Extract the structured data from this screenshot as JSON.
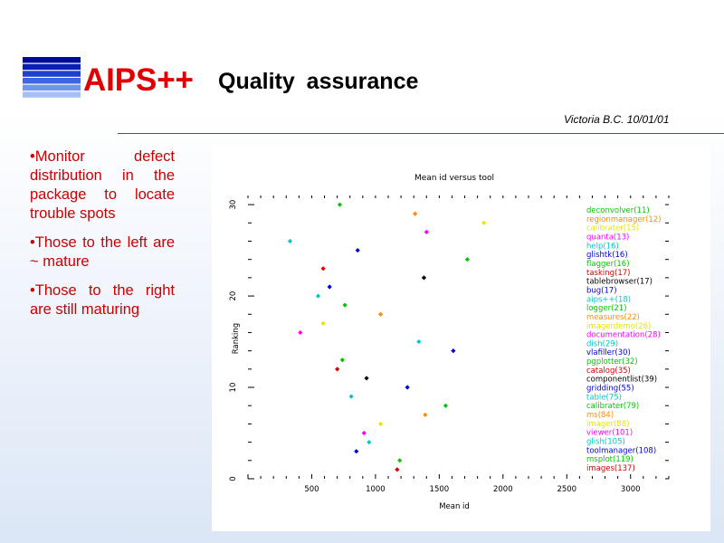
{
  "slide": {
    "title": "Quality  assurance",
    "byline": "Victoria  B.C.  10/01/01",
    "bullets": [
      "•Monitor defect distribution in the package to locate trouble spots",
      "•Those to the left are ~ mature",
      "•Those to the right are still maturing"
    ]
  },
  "logo": {
    "text": "AIPS++",
    "stripe_colors": [
      "#000a9a",
      "#0a1fb8",
      "#1f3fd0",
      "#3e66e0",
      "#6f96ec",
      "#a6c0f6"
    ],
    "text_color": "#e00000"
  },
  "colors": {
    "bullet_text": "#cc0000"
  },
  "chart_data": {
    "type": "scatter",
    "title": "Mean id versus tool",
    "xlabel": "Mean id",
    "ylabel": "Ranking",
    "xlim": [
      0,
      3300
    ],
    "ylim": [
      0,
      31
    ],
    "xticks": [
      500,
      1000,
      1500,
      2000,
      2500,
      3000
    ],
    "yticks": [
      0,
      10,
      20,
      30
    ],
    "points": [
      {
        "label": "deconvolver(11)",
        "ranking": 30,
        "mean_id": 720,
        "color": "#00c800"
      },
      {
        "label": "regionmanager(12)",
        "ranking": 29,
        "mean_id": 1310,
        "color": "#ff8c00"
      },
      {
        "label": "calibrater(15)",
        "ranking": 28,
        "mean_id": 1850,
        "color": "#e6e600"
      },
      {
        "label": "quanta(13)",
        "ranking": 27,
        "mean_id": 1400,
        "color": "#ff00ff"
      },
      {
        "label": "help(16)",
        "ranking": 26,
        "mean_id": 330,
        "color": "#00c8c8"
      },
      {
        "label": "glishtk(16)",
        "ranking": 25,
        "mean_id": 860,
        "color": "#0000dc"
      },
      {
        "label": "flagger(16)",
        "ranking": 24,
        "mean_id": 1720,
        "color": "#00c800"
      },
      {
        "label": "tasking(17)",
        "ranking": 23,
        "mean_id": 590,
        "color": "#dc0000"
      },
      {
        "label": "tablebrowser(17)",
        "ranking": 22,
        "mean_id": 1380,
        "color": "#000000"
      },
      {
        "label": "bug(17)",
        "ranking": 21,
        "mean_id": 640,
        "color": "#0000dc"
      },
      {
        "label": "aips++(18)",
        "ranking": 20,
        "mean_id": 550,
        "color": "#00c8c8"
      },
      {
        "label": "logger(21)",
        "ranking": 19,
        "mean_id": 760,
        "color": "#00c800"
      },
      {
        "label": "measures(22)",
        "ranking": 18,
        "mean_id": 1040,
        "color": "#ff8c00"
      },
      {
        "label": "imagerdemo(26)",
        "ranking": 17,
        "mean_id": 590,
        "color": "#e6e600"
      },
      {
        "label": "documentation(28)",
        "ranking": 16,
        "mean_id": 410,
        "color": "#ff00ff"
      },
      {
        "label": "dish(29)",
        "ranking": 15,
        "mean_id": 1340,
        "color": "#00c8c8"
      },
      {
        "label": "vlafiller(30)",
        "ranking": 14,
        "mean_id": 1610,
        "color": "#0000dc"
      },
      {
        "label": "pgplotter(32)",
        "ranking": 13,
        "mean_id": 740,
        "color": "#00c800"
      },
      {
        "label": "catalog(35)",
        "ranking": 12,
        "mean_id": 700,
        "color": "#dc0000"
      },
      {
        "label": "componentlist(39)",
        "ranking": 11,
        "mean_id": 930,
        "color": "#000000"
      },
      {
        "label": "gridding(55)",
        "ranking": 10,
        "mean_id": 1250,
        "color": "#0000dc"
      },
      {
        "label": "table(75)",
        "ranking": 9,
        "mean_id": 810,
        "color": "#00c8c8"
      },
      {
        "label": "calibrater(79)",
        "ranking": 8,
        "mean_id": 1550,
        "color": "#00c800"
      },
      {
        "label": "ms(84)",
        "ranking": 7,
        "mean_id": 1390,
        "color": "#ff8c00"
      },
      {
        "label": "imager(88)",
        "ranking": 6,
        "mean_id": 1040,
        "color": "#e6e600"
      },
      {
        "label": "viewer(101)",
        "ranking": 5,
        "mean_id": 910,
        "color": "#ff00ff"
      },
      {
        "label": "glish(105)",
        "ranking": 4,
        "mean_id": 950,
        "color": "#00c8c8"
      },
      {
        "label": "toolmanager(108)",
        "ranking": 3,
        "mean_id": 850,
        "color": "#0000dc"
      },
      {
        "label": "msplot(119)",
        "ranking": 2,
        "mean_id": 1190,
        "color": "#00c800"
      },
      {
        "label": "images(137)",
        "ranking": 1,
        "mean_id": 1170,
        "color": "#dc0000"
      }
    ]
  }
}
